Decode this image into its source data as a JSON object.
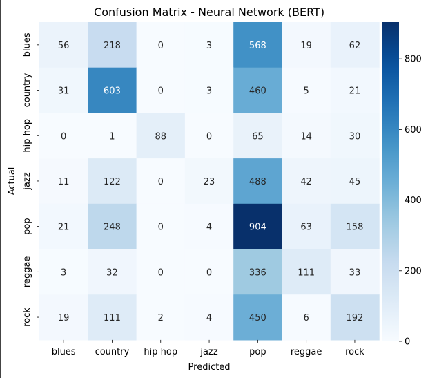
{
  "chart_data": {
    "type": "heatmap",
    "title": "Confusion Matrix - Neural Network (BERT)",
    "xlabel": "Predicted",
    "ylabel": "Actual",
    "x_categories": [
      "blues",
      "country",
      "hip hop",
      "jazz",
      "pop",
      "reggae",
      "rock"
    ],
    "y_categories": [
      "blues",
      "country",
      "hip hop",
      "jazz",
      "pop",
      "reggae",
      "rock"
    ],
    "values": [
      [
        56,
        218,
        0,
        3,
        568,
        19,
        62
      ],
      [
        31,
        603,
        0,
        3,
        460,
        5,
        21
      ],
      [
        0,
        1,
        88,
        0,
        65,
        14,
        30
      ],
      [
        11,
        122,
        0,
        23,
        488,
        42,
        45
      ],
      [
        21,
        248,
        0,
        4,
        904,
        63,
        158
      ],
      [
        3,
        32,
        0,
        0,
        336,
        111,
        33
      ],
      [
        19,
        111,
        2,
        4,
        450,
        6,
        192
      ]
    ],
    "colorbar": {
      "min": 0,
      "max": 904,
      "ticks": [
        0,
        200,
        400,
        600,
        800
      ],
      "colormap": "Blues"
    }
  }
}
